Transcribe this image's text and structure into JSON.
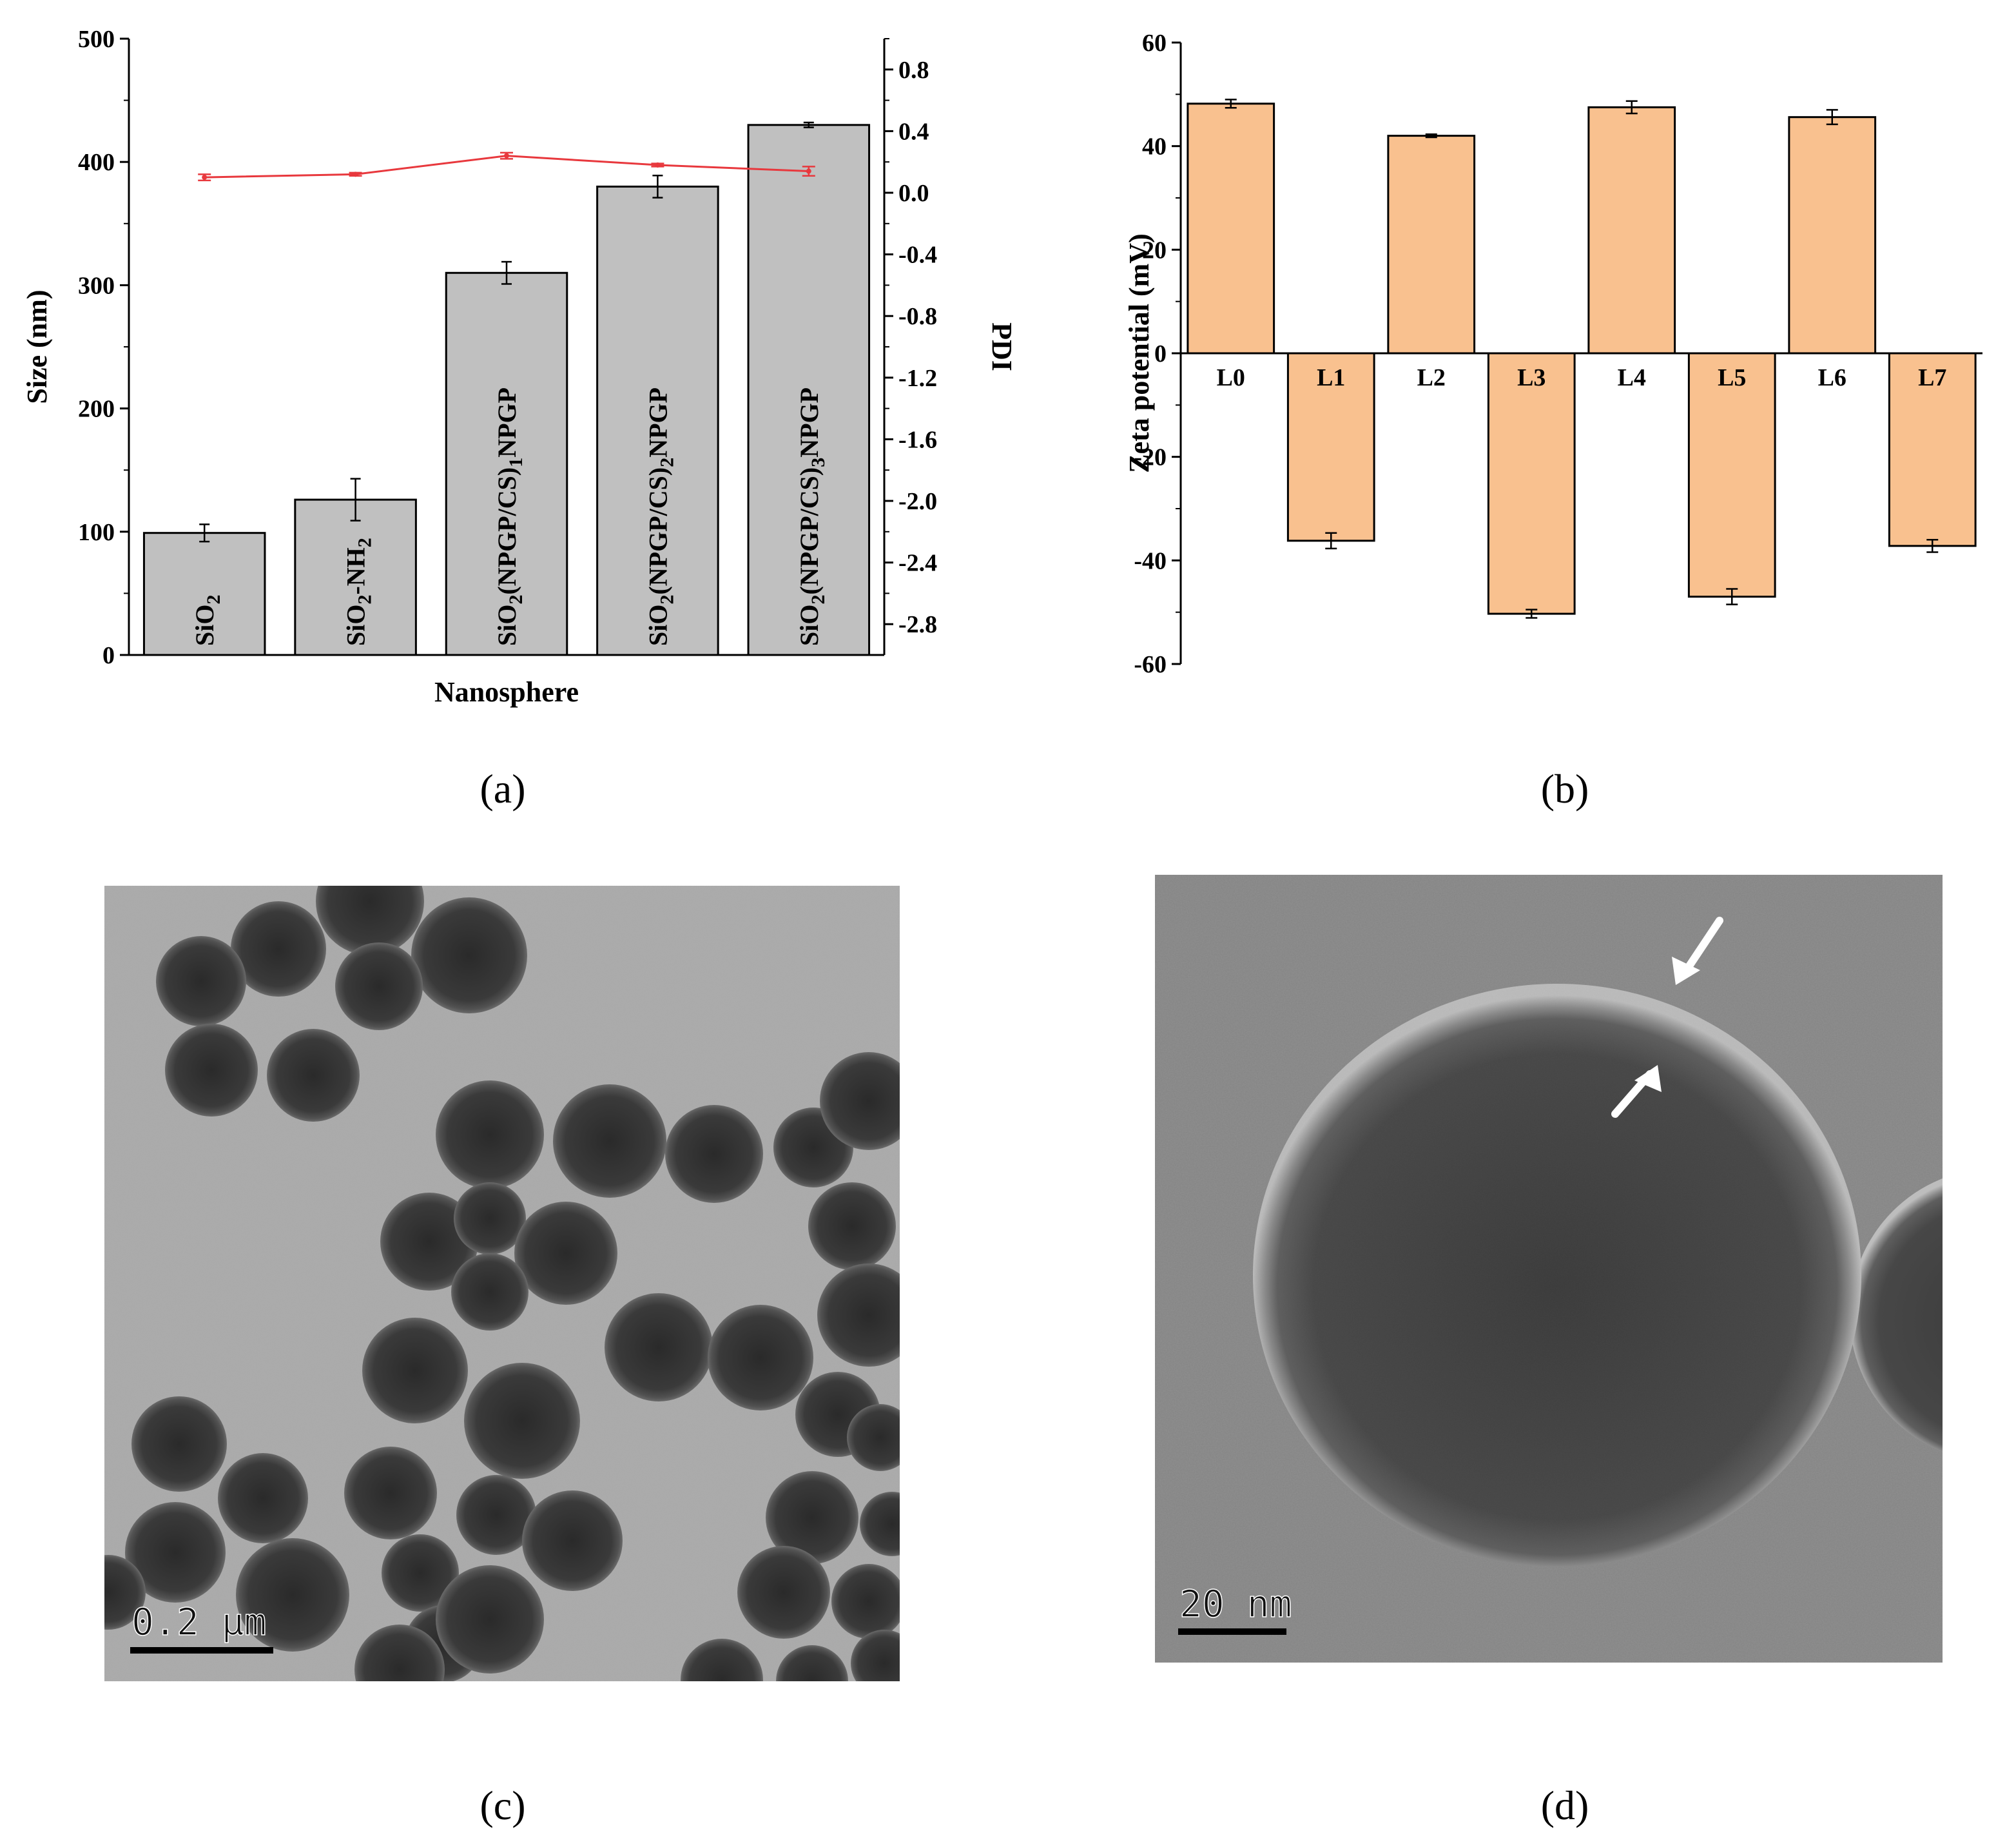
{
  "chart_data": [
    {
      "panel": "(a)",
      "type": "bar",
      "categories": [
        "SiO2",
        "SiO2-NH2",
        "SiO2(NPGP/CS)1NPGP",
        "SiO2(NPGP/CS)2NPGP",
        "SiO2(NPGP/CS)3NPGP"
      ],
      "category_labels": [
        {
          "parts": [
            {
              "t": "SiO"
            },
            {
              "t": "2",
              "sub": true
            }
          ]
        },
        {
          "parts": [
            {
              "t": "SiO"
            },
            {
              "t": "2",
              "sub": true
            },
            {
              "t": "-NH"
            },
            {
              "t": "2",
              "sub": true
            }
          ]
        },
        {
          "parts": [
            {
              "t": "SiO"
            },
            {
              "t": "2",
              "sub": true
            },
            {
              "t": "(NPGP/CS)"
            },
            {
              "t": "1",
              "sub": true
            },
            {
              "t": "NPGP"
            }
          ]
        },
        {
          "parts": [
            {
              "t": "SiO"
            },
            {
              "t": "2",
              "sub": true
            },
            {
              "t": "(NPGP/CS)"
            },
            {
              "t": "2",
              "sub": true
            },
            {
              "t": "NPGP"
            }
          ]
        },
        {
          "parts": [
            {
              "t": "SiO"
            },
            {
              "t": "2",
              "sub": true
            },
            {
              "t": "(NPGP/CS)"
            },
            {
              "t": "3",
              "sub": true
            },
            {
              "t": "NPGP"
            }
          ]
        }
      ],
      "series": [
        {
          "name": "Size",
          "axis": "left",
          "values": [
            99,
            126,
            310,
            380,
            430
          ],
          "errors": [
            7,
            17,
            9,
            9,
            2
          ],
          "color": "#c0c0c0"
        },
        {
          "name": "PDI",
          "axis": "right",
          "values": [
            0.1,
            0.12,
            0.24,
            0.18,
            0.14
          ],
          "errors": [
            0.02,
            0.01,
            0.02,
            0.01,
            0.03
          ],
          "color": "#e8383d"
        }
      ],
      "xlabel": "Nanosphere",
      "ylabel": "Size (nm)",
      "y2label": "PDI",
      "ylim": [
        0,
        500
      ],
      "yticks": [
        "0",
        "100",
        "200",
        "300",
        "400",
        "500"
      ],
      "y2lim": [
        -3.0,
        1.0
      ],
      "y2ticks": [
        "0.8",
        "0.4",
        "0.0",
        "-0.4",
        "-0.8",
        "-1.2",
        "-1.6",
        "-2.0",
        "-2.4",
        "-2.8"
      ]
    },
    {
      "panel": "(b)",
      "type": "bar",
      "categories": [
        "L0",
        "L1",
        "L2",
        "L3",
        "L4",
        "L5",
        "L6",
        "L7"
      ],
      "values": [
        48.2,
        -36.2,
        42.0,
        -50.3,
        47.5,
        -47.0,
        45.6,
        -37.2
      ],
      "errors": [
        0.8,
        1.5,
        0.3,
        0.8,
        1.2,
        1.5,
        1.4,
        1.2
      ],
      "bar_color": "#f9c18f",
      "ylabel": "Zeta potential (mV)",
      "ylim": [
        -60,
        60
      ],
      "yticks": [
        "60",
        "40",
        "20",
        "0",
        "-20",
        "-40",
        "-60"
      ]
    }
  ],
  "panels": {
    "a": "(a)",
    "b": "(b)",
    "c": "(c)",
    "d": "(d)"
  },
  "images": {
    "c": {
      "scale_bar": "0.2 μm"
    },
    "d": {
      "scale_bar": "20 nm"
    }
  }
}
